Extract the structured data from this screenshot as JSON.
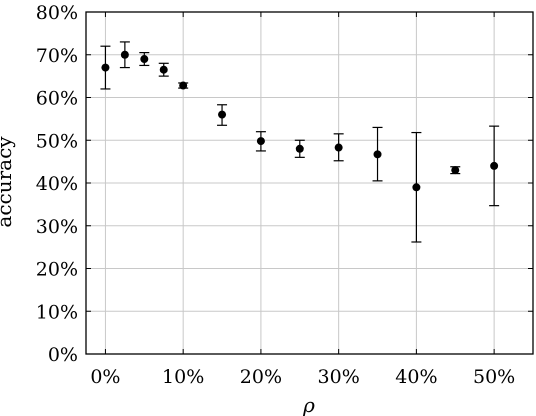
{
  "chart_data": {
    "type": "scatter",
    "title": "",
    "xlabel": "ρ",
    "ylabel": "accuracy",
    "xlim": [
      -2.5,
      55
    ],
    "ylim": [
      0,
      80
    ],
    "x_ticks": [
      0,
      10,
      20,
      30,
      40,
      50
    ],
    "x_tick_labels": [
      "0%",
      "10%",
      "20%",
      "30%",
      "40%",
      "50%"
    ],
    "y_ticks": [
      0,
      10,
      20,
      30,
      40,
      50,
      60,
      70,
      80
    ],
    "y_tick_labels": [
      "0%",
      "10%",
      "20%",
      "30%",
      "40%",
      "50%",
      "60%",
      "70%",
      "80%"
    ],
    "grid": true,
    "error_bars": true,
    "series": [
      {
        "points": [
          {
            "x": 0,
            "y": 67,
            "lo": 62,
            "hi": 72
          },
          {
            "x": 2.5,
            "y": 70,
            "lo": 67,
            "hi": 73
          },
          {
            "x": 5,
            "y": 69,
            "lo": 67.5,
            "hi": 70.5
          },
          {
            "x": 7.5,
            "y": 66.5,
            "lo": 65,
            "hi": 68
          },
          {
            "x": 10,
            "y": 62.8,
            "lo": 62.2,
            "hi": 63.4
          },
          {
            "x": 15,
            "y": 56,
            "lo": 53.5,
            "hi": 58.3
          },
          {
            "x": 20,
            "y": 49.8,
            "lo": 47.5,
            "hi": 52
          },
          {
            "x": 25,
            "y": 48,
            "lo": 46,
            "hi": 50
          },
          {
            "x": 30,
            "y": 48.3,
            "lo": 45.2,
            "hi": 51.5
          },
          {
            "x": 35,
            "y": 46.7,
            "lo": 40.5,
            "hi": 53
          },
          {
            "x": 40,
            "y": 39,
            "lo": 26.2,
            "hi": 51.8
          },
          {
            "x": 45,
            "y": 43,
            "lo": 42.2,
            "hi": 43.8
          },
          {
            "x": 50,
            "y": 44,
            "lo": 34.7,
            "hi": 53.3
          }
        ]
      }
    ]
  }
}
